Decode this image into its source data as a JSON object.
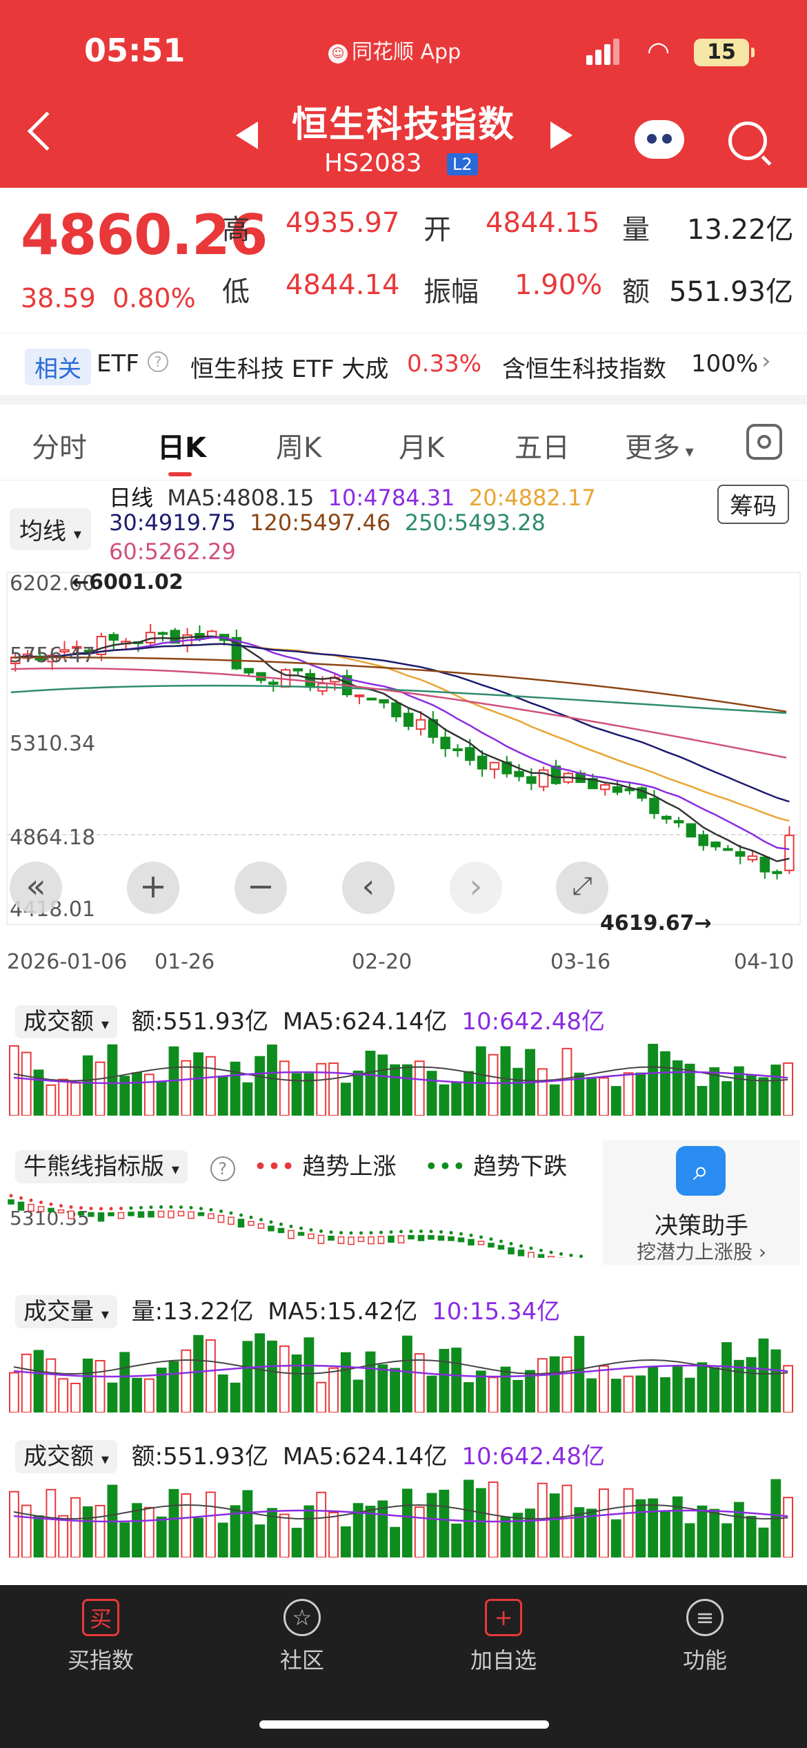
{
  "status_bar": {
    "time": "05:51",
    "app": "同花顺 App",
    "battery": "15"
  },
  "header": {
    "title": "恒生科技指数",
    "code": "HS2083",
    "badge": "L2"
  },
  "quote": {
    "price": "4860.26",
    "change": "38.59",
    "change_pct": "0.80%",
    "fields": [
      {
        "label": "高",
        "value": "4935.97"
      },
      {
        "label": "开",
        "value": "4844.15"
      },
      {
        "label": "量",
        "value": "13.22亿"
      },
      {
        "label": "低",
        "value": "4844.14"
      },
      {
        "label": "振幅",
        "value": "1.90%"
      },
      {
        "label": "额",
        "value": "551.93亿"
      }
    ]
  },
  "related": {
    "tag": "相关",
    "etf_label": "ETF",
    "etf_name": "恒生科技 ETF 大成",
    "etf_pct": "0.33%",
    "contain_label": "含恒生科技指数",
    "contain_pct": "100%"
  },
  "tabs": [
    "分时",
    "日K",
    "周K",
    "月K",
    "五日",
    "更多"
  ],
  "active_tab": "日K",
  "chart": {
    "ma_dropdown": "均线",
    "chip_button": "筹码",
    "period_label": "日线",
    "ma": [
      {
        "label": "MA5:4808.15",
        "color": "#333333"
      },
      {
        "label": "10:4784.31",
        "color": "#8a2be2"
      },
      {
        "label": "20:4882.17",
        "color": "#e8a531"
      },
      {
        "label": "30:4919.75",
        "color": "#1b1b6e"
      },
      {
        "label": "120:5497.46",
        "color": "#8b4513"
      },
      {
        "label": "250:5493.28",
        "color": "#2e8b6b"
      },
      {
        "label": "60:5262.29",
        "color": "#d0507a"
      }
    ],
    "y_labels": [
      "6202.60",
      "5756.47",
      "5310.34",
      "4864.18",
      "4418.01"
    ],
    "high_marker": "6001.02",
    "low_marker": "4619.67",
    "x_labels": [
      "2026-01-06",
      "01-26",
      "02-20",
      "03-16",
      "04-10"
    ]
  },
  "chart_data": {
    "type": "candlestick",
    "title": "恒生科技指数 日K",
    "ylim": [
      4418.01,
      6202.6
    ],
    "high": 6001.02,
    "low": 4619.67,
    "last_close": 4860.26
  },
  "panels": {
    "amount1": {
      "dropdown": "成交额",
      "value": "额:551.93亿",
      "ma5": "MA5:624.14亿",
      "ma10": "10:642.48亿"
    },
    "bullbear": {
      "dropdown": "牛熊线指标版",
      "up": "趋势上涨",
      "down": "趋势下跌",
      "ylabel": "5310.35",
      "helper_title": "决策助手",
      "helper_sub": "挖潜力上涨股"
    },
    "volume": {
      "dropdown": "成交量",
      "value": "量:13.22亿",
      "ma5": "MA5:15.42亿",
      "ma10": "10:15.34亿"
    },
    "amount2": {
      "dropdown": "成交额",
      "value": "额:551.93亿",
      "ma5": "MA5:624.14亿",
      "ma10": "10:642.48亿"
    }
  },
  "bottom_nav": [
    {
      "label": "买指数",
      "icon": "买"
    },
    {
      "label": "社区",
      "icon": "☆"
    },
    {
      "label": "加自选",
      "icon": "+"
    },
    {
      "label": "功能",
      "icon": "≡"
    }
  ],
  "colors": {
    "up": "#e9383a",
    "down": "#0f8c1e",
    "header": "#e9383a"
  }
}
